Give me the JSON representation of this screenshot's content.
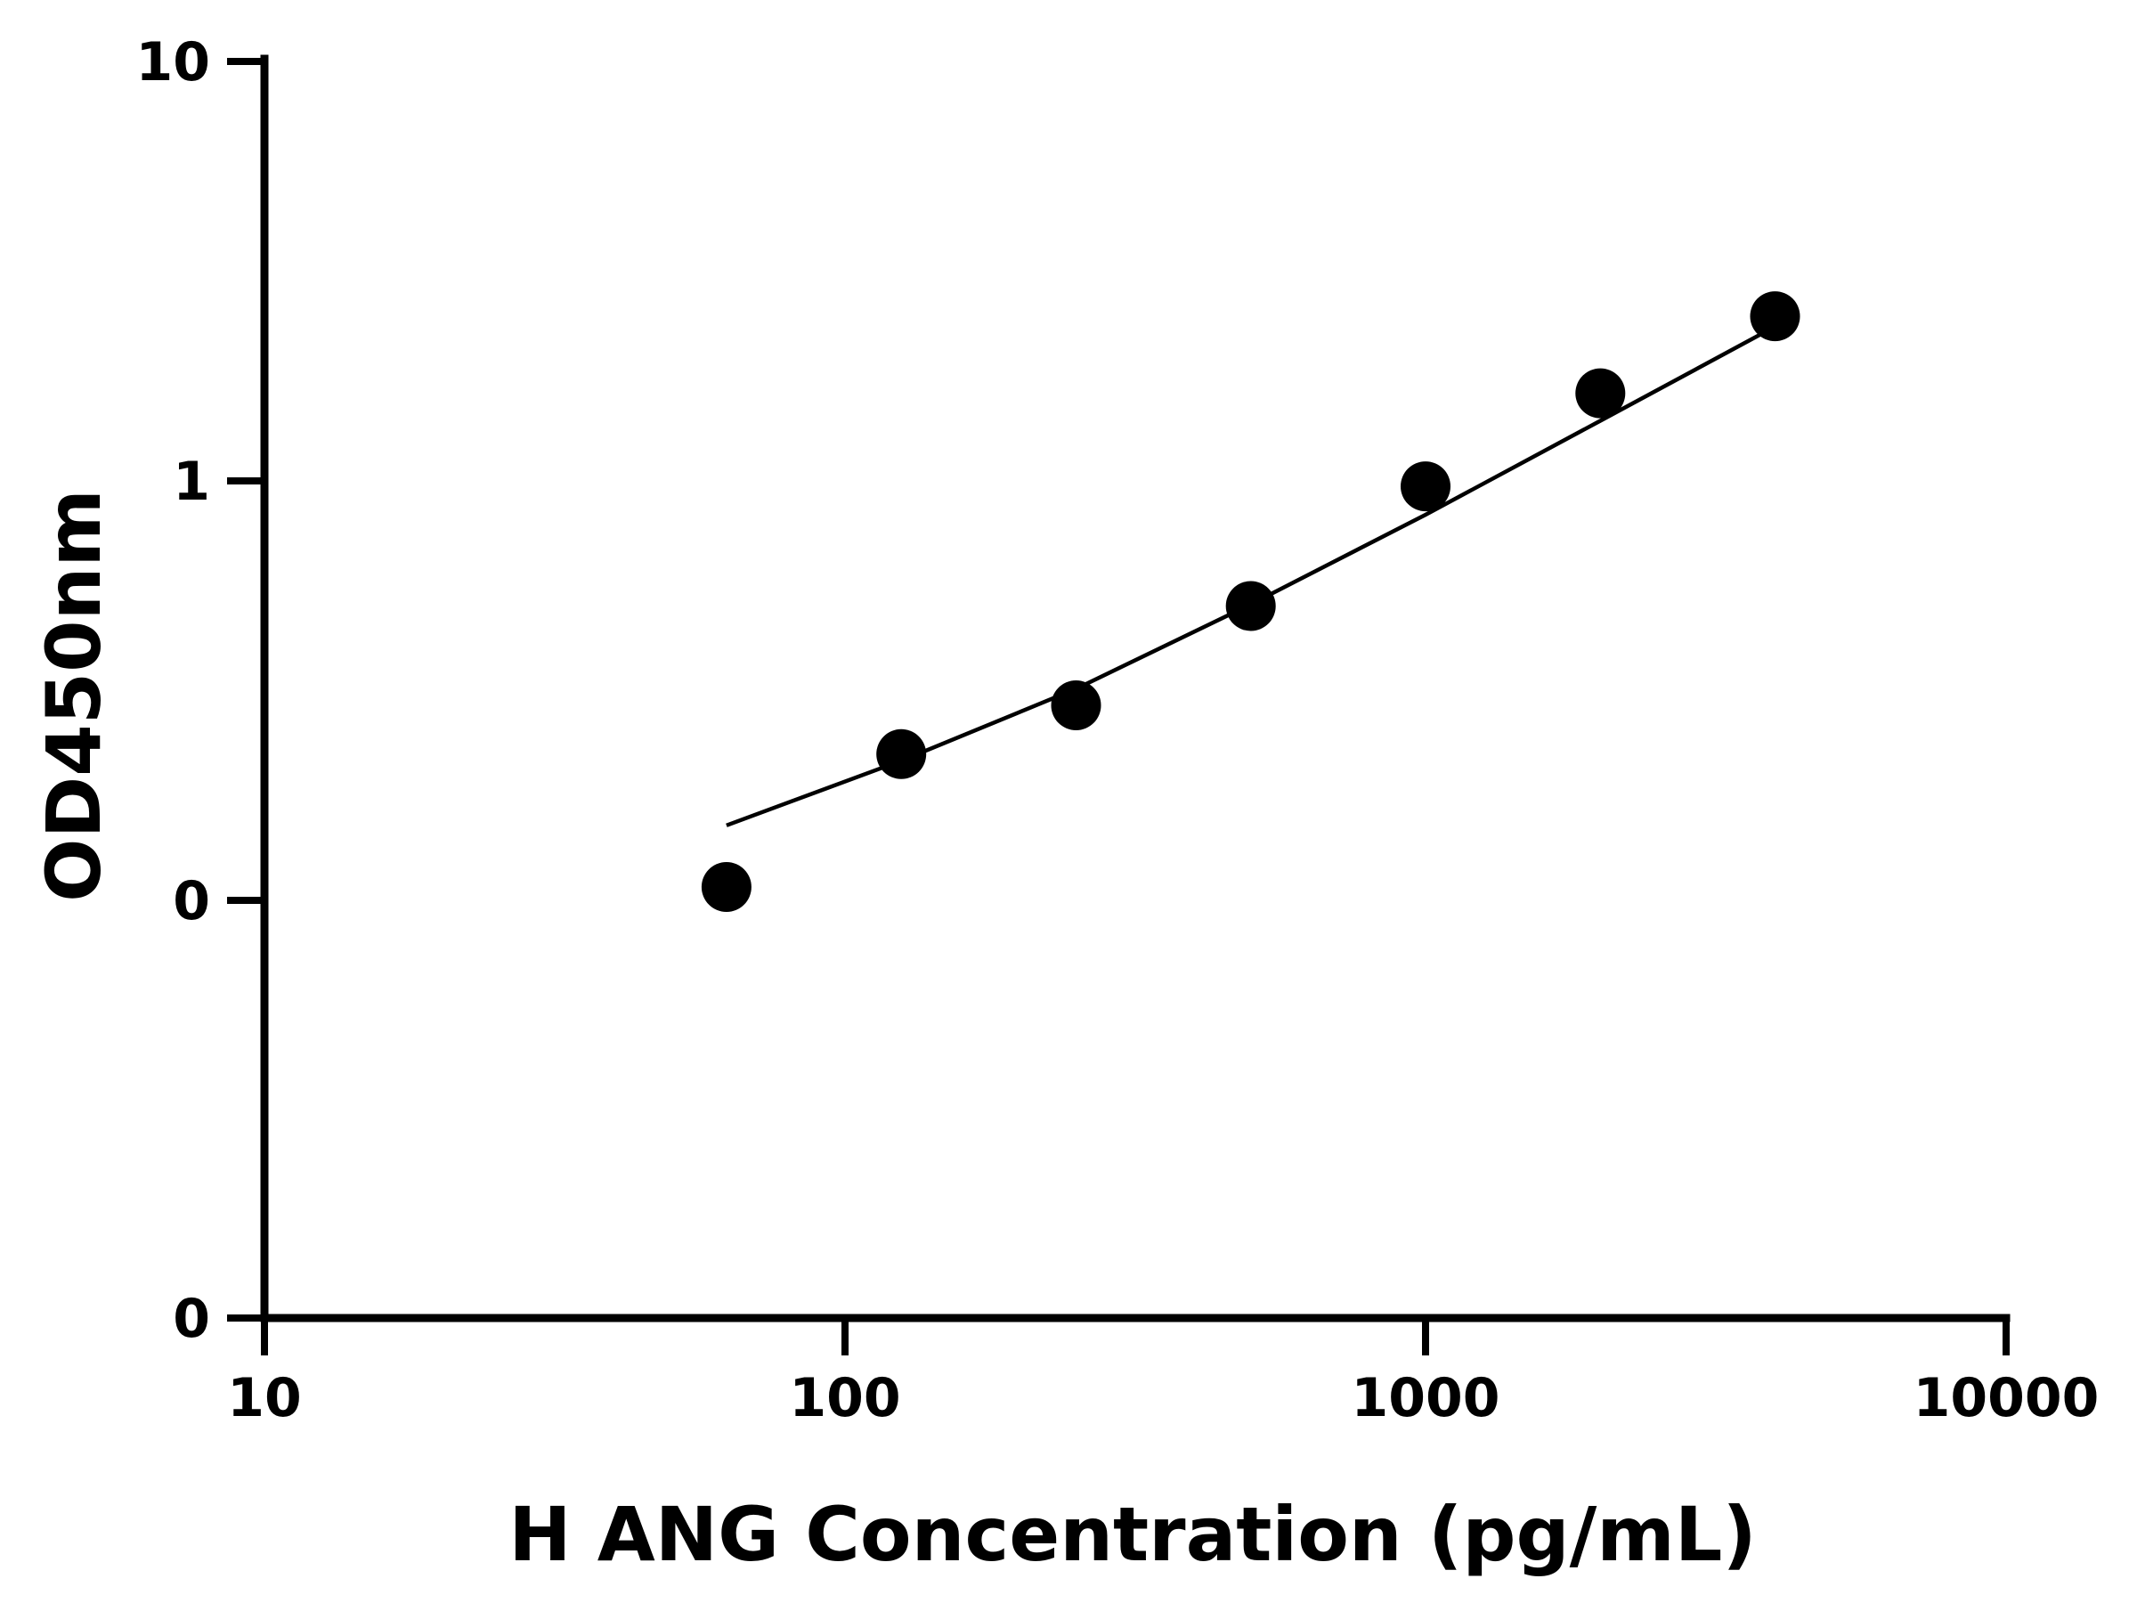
{
  "chart_data": {
    "type": "scatter",
    "xlabel": "H ANG Concentration (pg/mL)",
    "ylabel": "OD450nm",
    "x_scale": "log",
    "y_scale": "log",
    "xlim": [
      10,
      10000
    ],
    "grid": false,
    "legend": "none",
    "x_ticks": [
      {
        "value": 10,
        "label": "10"
      },
      {
        "value": 100,
        "label": "100"
      },
      {
        "value": 1000,
        "label": "1000"
      },
      {
        "value": 10000,
        "label": "10000"
      }
    ],
    "y_ticks": [
      {
        "value": 0.01,
        "label": "0"
      },
      {
        "value": 0.1,
        "label": "0"
      },
      {
        "value": 1,
        "label": "1"
      },
      {
        "value": 10,
        "label": "10"
      }
    ],
    "series": [
      {
        "style": "points",
        "x": [
          62.5,
          125,
          250,
          500,
          1000,
          2000,
          4000
        ],
        "y": [
          0.1076,
          0.2232,
          0.2917,
          0.5031,
          0.9705,
          1.618,
          2.469
        ]
      },
      {
        "style": "fit-line",
        "x": [
          62.5,
          125,
          250,
          500,
          1000,
          2000,
          4000
        ],
        "y": [
          0.1509,
          0.2152,
          0.3193,
          0.5079,
          0.8303,
          1.391,
          2.333
        ]
      }
    ]
  },
  "colors": {
    "foreground": "#000000",
    "background": "#ffffff"
  }
}
